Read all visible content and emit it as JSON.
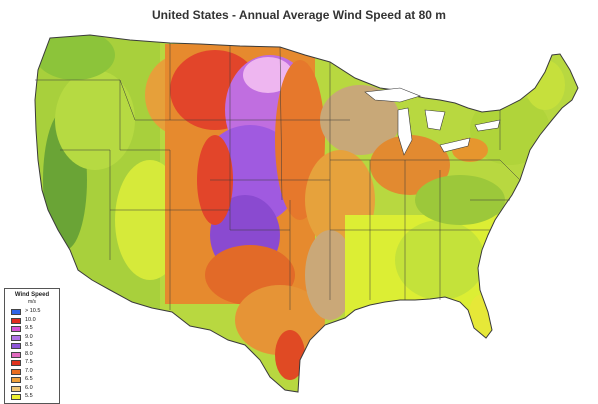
{
  "map": {
    "title": "United States - Annual Average Wind Speed at 80 m",
    "colors": {
      "low_green": "#9ccc3c",
      "light_yellow_green": "#d8ec3c",
      "yellow": "#eef030",
      "tan": "#c8a878",
      "orange": "#e69a36",
      "dark_orange": "#e0661e",
      "red": "#e1361e",
      "pink": "#e29ce4",
      "purple": "#9a5ad8",
      "dark_purple": "#7a3ac0",
      "dark_green": "#5e9a2c"
    }
  },
  "legend": {
    "title": "Wind Speed",
    "units": "m/s",
    "entries": [
      {
        "label": "> 10.5",
        "color": "#2f64e6"
      },
      {
        "label": "10.0",
        "color": "#e02a1e"
      },
      {
        "label": "9.5",
        "color": "#d455d6"
      },
      {
        "label": "9.0",
        "color": "#b073e8"
      },
      {
        "label": "8.5",
        "color": "#8e56d8"
      },
      {
        "label": "8.0",
        "color": "#e26bbf"
      },
      {
        "label": "7.5",
        "color": "#e0331e"
      },
      {
        "label": "7.0",
        "color": "#e96d1f"
      },
      {
        "label": "6.5",
        "color": "#f0a03a"
      },
      {
        "label": "6.0",
        "color": "#f0c878"
      },
      {
        "label": "5.5",
        "color": "#eef030"
      }
    ]
  }
}
